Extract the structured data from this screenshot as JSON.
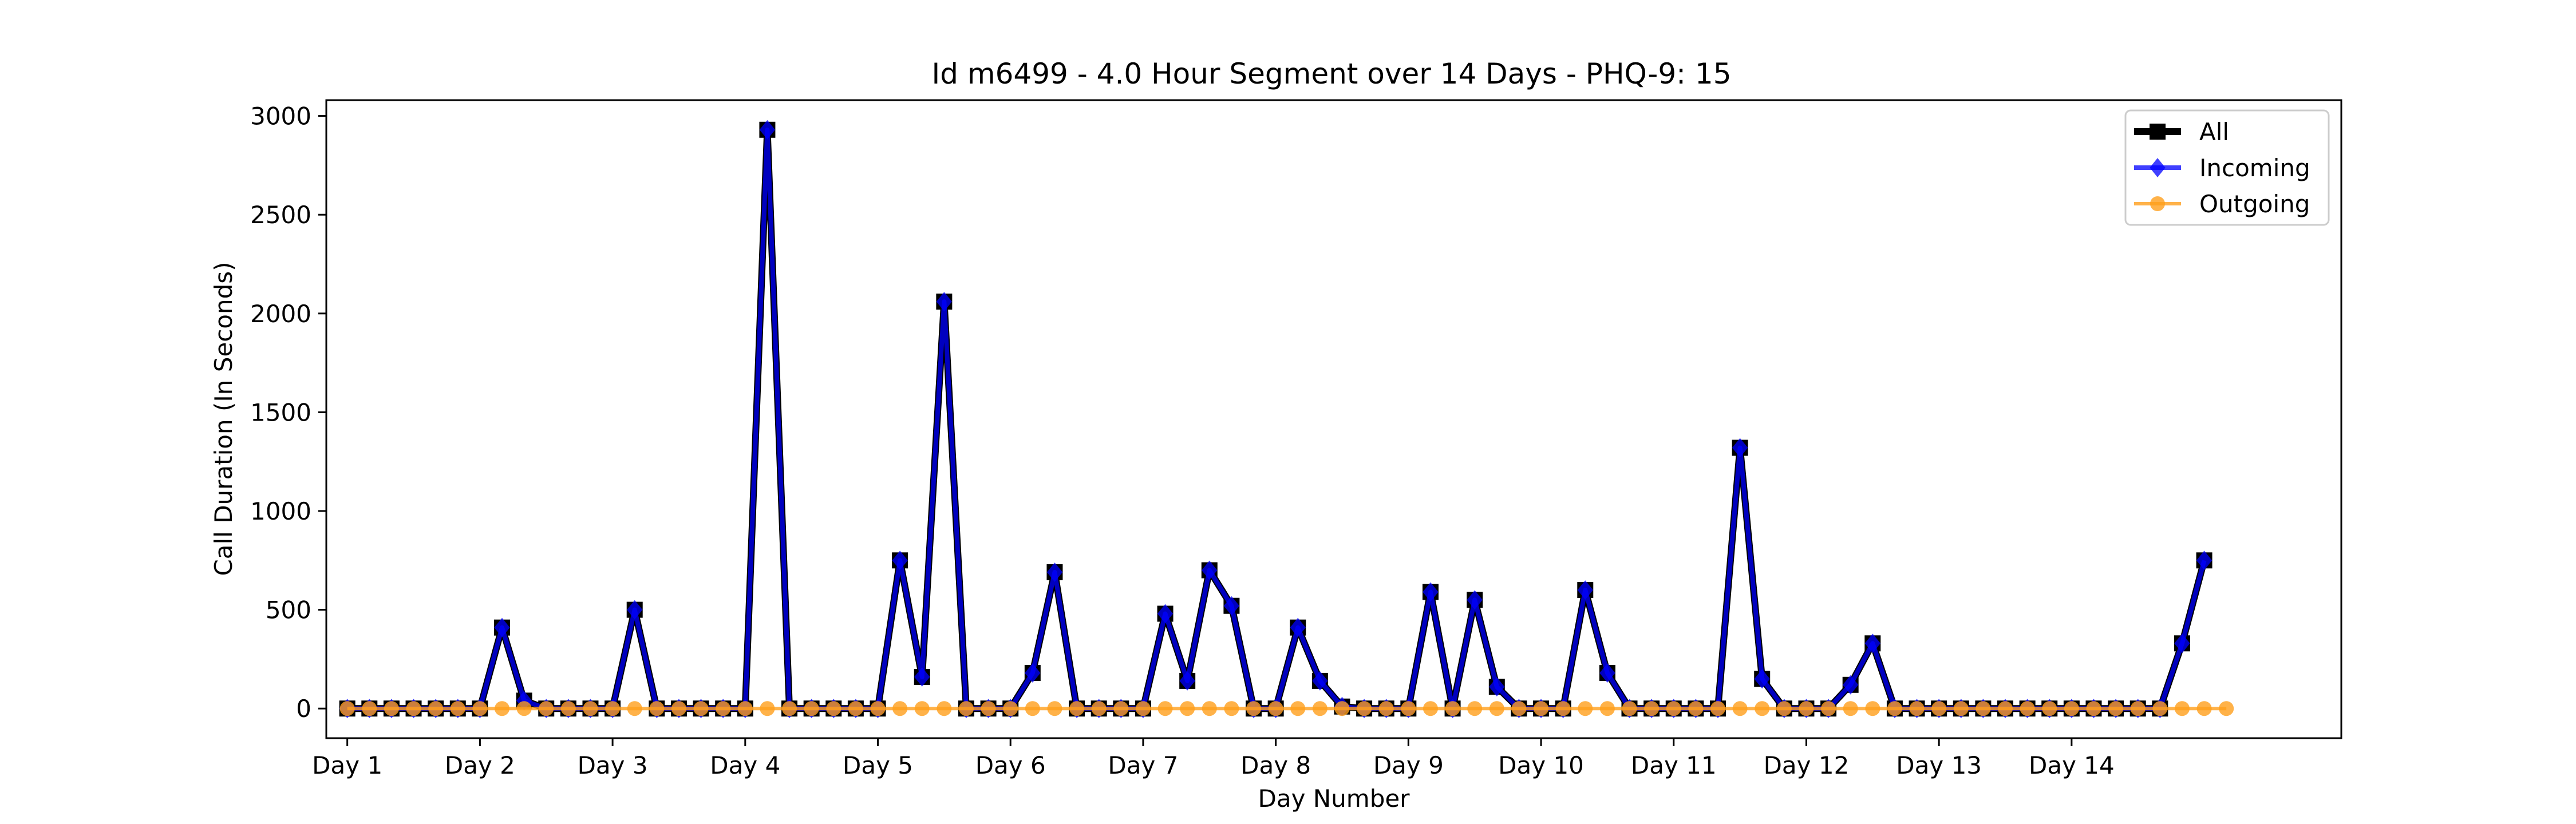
{
  "chart_data": {
    "type": "line",
    "title": "Id m6499 - 4.0 Hour Segment over 14 Days - PHQ-9: 15",
    "xlabel": "Day Number",
    "ylabel": "Call Duration (In Seconds)",
    "ylim": [
      -150,
      3080
    ],
    "yticks": [
      0,
      500,
      1000,
      1500,
      2000,
      2500,
      3000
    ],
    "xlim": [
      -0.95,
      90.2
    ],
    "xticks": [
      {
        "pos": 0,
        "label": "Day 1"
      },
      {
        "pos": 6,
        "label": "Day 2"
      },
      {
        "pos": 12,
        "label": "Day 3"
      },
      {
        "pos": 18,
        "label": "Day 4"
      },
      {
        "pos": 24,
        "label": "Day 5"
      },
      {
        "pos": 30,
        "label": "Day 6"
      },
      {
        "pos": 36,
        "label": "Day 7"
      },
      {
        "pos": 42,
        "label": "Day 8"
      },
      {
        "pos": 48,
        "label": "Day 9"
      },
      {
        "pos": 54,
        "label": "Day 10"
      },
      {
        "pos": 60,
        "label": "Day 11"
      },
      {
        "pos": 66,
        "label": "Day 12"
      },
      {
        "pos": 72,
        "label": "Day 13"
      },
      {
        "pos": 78,
        "label": "Day 14"
      }
    ],
    "grid": false,
    "legend_position": "top-right",
    "series": [
      {
        "name": "All",
        "color": "#000000",
        "marker": "square",
        "values": [
          0,
          0,
          0,
          0,
          0,
          0,
          0,
          410,
          40,
          0,
          0,
          0,
          0,
          500,
          0,
          0,
          0,
          0,
          0,
          2930,
          0,
          0,
          0,
          0,
          0,
          750,
          160,
          2060,
          0,
          0,
          0,
          180,
          690,
          0,
          0,
          0,
          0,
          480,
          140,
          700,
          520,
          0,
          0,
          410,
          140,
          10,
          0,
          0,
          0,
          590,
          0,
          550,
          110,
          0,
          0,
          0,
          600,
          180,
          0,
          0,
          0,
          0,
          0,
          1320,
          150,
          0,
          0,
          0,
          120,
          330,
          0,
          0,
          0,
          0,
          0,
          0,
          0,
          0,
          0,
          0,
          0,
          0,
          0,
          330,
          750
        ]
      },
      {
        "name": "Incoming",
        "color": "#0000ff",
        "marker": "diamond",
        "values": [
          0,
          0,
          0,
          0,
          0,
          0,
          0,
          410,
          40,
          0,
          0,
          0,
          0,
          500,
          0,
          0,
          0,
          0,
          0,
          2930,
          0,
          0,
          0,
          0,
          0,
          750,
          160,
          2060,
          0,
          0,
          0,
          180,
          690,
          0,
          0,
          0,
          0,
          480,
          140,
          700,
          520,
          0,
          0,
          410,
          140,
          10,
          0,
          0,
          0,
          590,
          0,
          550,
          110,
          0,
          0,
          0,
          600,
          180,
          0,
          0,
          0,
          0,
          0,
          1320,
          150,
          0,
          0,
          0,
          120,
          330,
          0,
          0,
          0,
          0,
          0,
          0,
          0,
          0,
          0,
          0,
          0,
          0,
          0,
          330,
          750
        ]
      },
      {
        "name": "Outgoing",
        "color": "#ff9f1c",
        "marker": "circle",
        "values": [
          0,
          0,
          0,
          0,
          0,
          0,
          0,
          0,
          0,
          0,
          0,
          0,
          0,
          0,
          0,
          0,
          0,
          0,
          0,
          0,
          0,
          0,
          0,
          0,
          0,
          0,
          0,
          0,
          0,
          0,
          0,
          0,
          0,
          0,
          0,
          0,
          0,
          0,
          0,
          0,
          0,
          0,
          0,
          0,
          0,
          0,
          0,
          0,
          0,
          0,
          0,
          0,
          0,
          0,
          0,
          0,
          0,
          0,
          0,
          0,
          0,
          0,
          0,
          0,
          0,
          0,
          0,
          0,
          0,
          0,
          0,
          0,
          0,
          0,
          0,
          0,
          0,
          0,
          0,
          0,
          0,
          0,
          0,
          0,
          0,
          0
        ]
      }
    ]
  }
}
